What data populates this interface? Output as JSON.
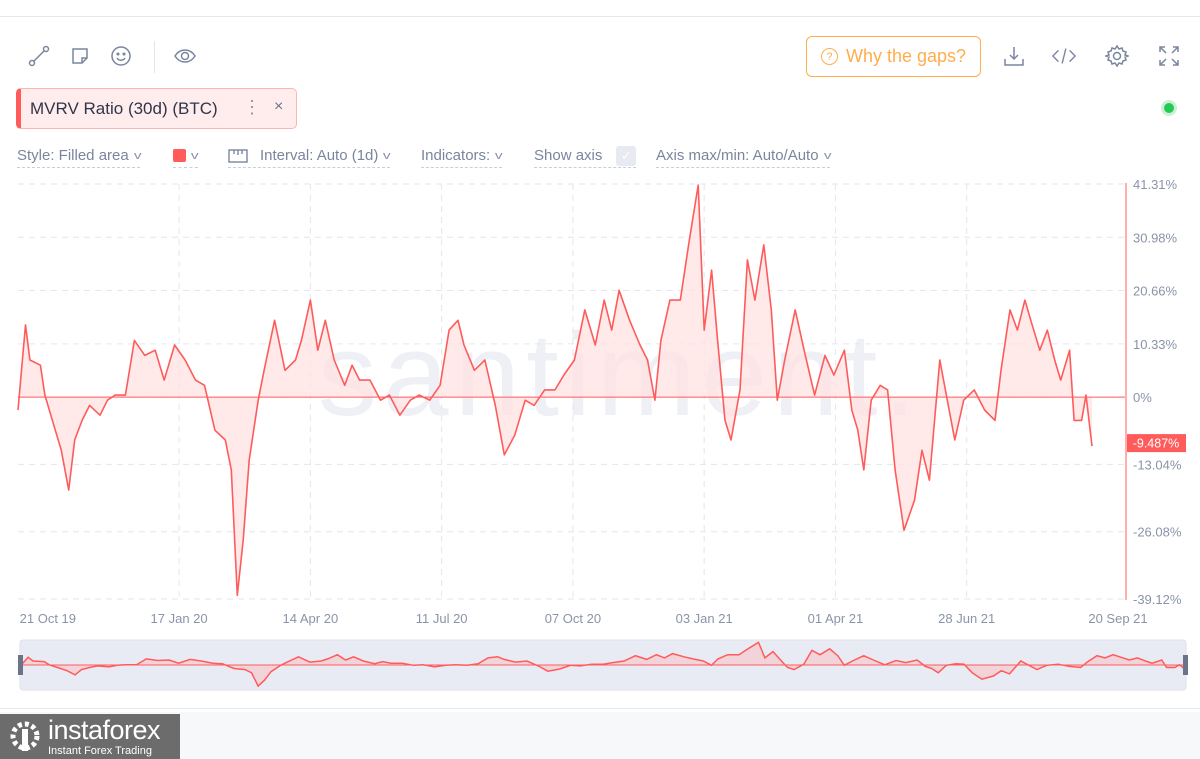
{
  "toolbar": {
    "icons": [
      "line-drawing-icon",
      "sticky-note-icon",
      "emoji-icon",
      "eye-icon"
    ],
    "why_gaps_label": "Why the gaps?",
    "right_icons": [
      "download-icon",
      "embed-code-icon",
      "settings-gear-icon",
      "fullscreen-icon"
    ]
  },
  "metric": {
    "label": "MVRV Ratio (30d) (BTC)",
    "menu": "⋮",
    "close": "×",
    "color": "#ff5b5b"
  },
  "options": {
    "style": "Style: Filled area",
    "interval": "Interval: Auto (1d)",
    "indicators": "Indicators:",
    "show_axis": "Show axis",
    "axis_maxmin": "Axis max/min: Auto/Auto"
  },
  "watermark": "santiment.",
  "chart_data": {
    "type": "area",
    "title": "MVRV Ratio (30d) (BTC)",
    "ylabel": "",
    "ylim": [
      -39.12,
      41.31
    ],
    "y_ticks": [
      "41.31%",
      "30.98%",
      "20.66%",
      "10.33%",
      "0%",
      "-13.04%",
      "-26.08%",
      "-39.12%"
    ],
    "y_tick_values": [
      41.31,
      30.98,
      20.66,
      10.33,
      0,
      -13.04,
      -26.08,
      -39.12
    ],
    "x_ticks": [
      "21 Oct 19",
      "17 Jan 20",
      "14 Apr 20",
      "11 Jul 20",
      "07 Oct 20",
      "03 Jan 21",
      "01 Apr 21",
      "28 Jun 21",
      "20 Sep 21"
    ],
    "x_tick_days": [
      20,
      108,
      196,
      284,
      372,
      460,
      548,
      636,
      720
    ],
    "last_value_label": "-9.487%",
    "color": "#ff5b5b",
    "grid": true,
    "days": [
      0,
      5,
      8,
      15,
      18,
      25,
      29,
      34,
      38,
      43,
      48,
      55,
      60,
      65,
      72,
      78,
      85,
      92,
      98,
      105,
      112,
      119,
      125,
      132,
      139,
      143,
      147,
      151,
      155,
      161,
      165,
      172,
      179,
      186,
      190,
      196,
      201,
      206,
      212,
      219,
      224,
      229,
      236,
      243,
      249,
      256,
      263,
      269,
      276,
      283,
      289,
      295,
      299,
      306,
      313,
      320,
      326,
      333,
      340,
      346,
      353,
      360,
      366,
      373,
      380,
      387,
      393,
      398,
      403,
      410,
      417,
      422,
      427,
      431,
      437,
      444,
      450,
      456,
      460,
      465,
      469,
      474,
      478,
      484,
      489,
      494,
      500,
      505,
      509,
      514,
      521,
      527,
      534,
      541,
      547,
      554,
      559,
      563,
      567,
      572,
      578,
      583,
      588,
      594,
      601,
      606,
      611,
      618,
      623,
      628,
      634,
      641,
      648,
      655,
      659,
      665,
      670,
      675,
      679,
      685,
      690,
      695,
      699,
      705,
      708,
      713,
      716,
      720
    ],
    "values": [
      -2.5,
      14.0,
      7.2,
      6.2,
      0.4,
      -6.4,
      -10.3,
      -18.0,
      -8.3,
      -4.5,
      -1.6,
      -3.5,
      -0.6,
      0.4,
      0.4,
      11.0,
      8.1,
      9.1,
      3.3,
      10.1,
      7.2,
      3.3,
      2.3,
      -6.4,
      -8.3,
      -14.1,
      -38.4,
      -27.7,
      -12.2,
      -0.6,
      5.2,
      14.9,
      5.2,
      7.2,
      11.0,
      18.8,
      9.1,
      14.9,
      7.2,
      2.3,
      6.2,
      3.3,
      3.3,
      -0.6,
      0.4,
      -3.5,
      -0.6,
      0.4,
      -0.6,
      2.3,
      13.0,
      14.9,
      10.1,
      5.2,
      7.2,
      -1.6,
      -11.2,
      -7.4,
      -0.6,
      -1.6,
      1.4,
      1.4,
      4.3,
      7.2,
      16.9,
      10.1,
      18.8,
      13.0,
      20.7,
      14.9,
      10.1,
      7.2,
      -0.6,
      11.0,
      18.8,
      18.8,
      30.4,
      41.1,
      13.0,
      24.6,
      11.0,
      -4.5,
      -8.3,
      1.4,
      26.6,
      18.8,
      29.5,
      16.9,
      -0.6,
      7.2,
      16.9,
      9.1,
      0.4,
      8.1,
      4.3,
      9.1,
      -2.5,
      -6.4,
      -14.1,
      -0.6,
      2.3,
      1.4,
      -14.1,
      -25.8,
      -20.0,
      -10.3,
      -16.1,
      7.2,
      -0.6,
      -8.3,
      -0.6,
      1.4,
      -2.5,
      -4.5,
      5.2,
      16.9,
      13.0,
      18.8,
      14.9,
      9.1,
      13.0,
      7.2,
      3.3,
      9.1,
      -4.5,
      -4.5,
      0.4,
      -9.487
    ]
  },
  "footer": {
    "logo_name": "instaforex",
    "logo_tagline": "Instant Forex Trading"
  }
}
